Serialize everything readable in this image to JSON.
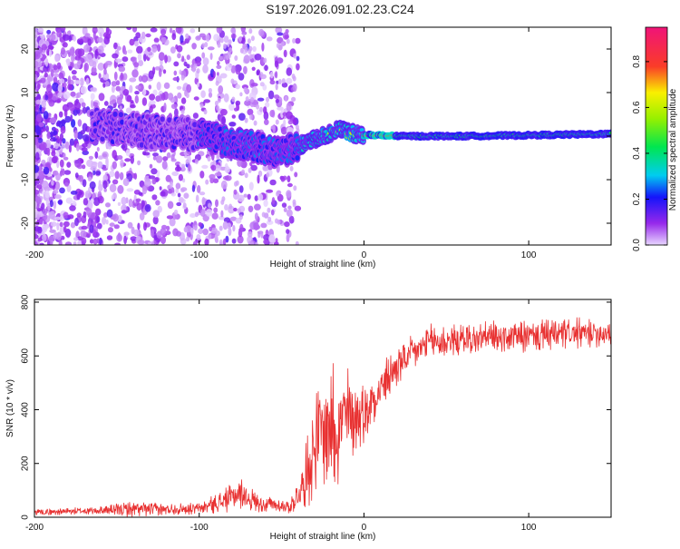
{
  "title": "S197.2026.091.02.23.C24",
  "chart_data": [
    {
      "type": "heatmap",
      "xlabel": "Height of straight line (km)",
      "ylabel": "Frequency (Hz)",
      "xlim": [
        -200,
        150
      ],
      "ylim": [
        -25,
        25
      ],
      "xticks": [
        -200,
        -100,
        0,
        100
      ],
      "yticks": [
        -20,
        -10,
        0,
        10,
        20
      ],
      "colorbar": {
        "label": "Normalized spectral amplitude",
        "range": [
          0,
          0.95
        ],
        "ticks": [
          0.0,
          0.2,
          0.4,
          0.6,
          0.8
        ]
      },
      "ridge": [
        {
          "x": -160,
          "y": 2.5
        },
        {
          "x": -140,
          "y": 1.5
        },
        {
          "x": -120,
          "y": 0.5
        },
        {
          "x": -100,
          "y": 0.5
        },
        {
          "x": -85,
          "y": -1.0
        },
        {
          "x": -70,
          "y": -2.0
        },
        {
          "x": -55,
          "y": -3.5
        },
        {
          "x": -45,
          "y": -3.0
        },
        {
          "x": -35,
          "y": -1.5
        },
        {
          "x": -25,
          "y": 0.0
        },
        {
          "x": -15,
          "y": 1.5
        },
        {
          "x": -5,
          "y": 0.5
        },
        {
          "x": 0,
          "y": 0.3
        },
        {
          "x": 20,
          "y": 0.0
        },
        {
          "x": 60,
          "y": 0.0
        },
        {
          "x": 100,
          "y": 0.2
        },
        {
          "x": 150,
          "y": 0.5
        }
      ]
    },
    {
      "type": "line",
      "xlabel": "Height of straight line (km)",
      "ylabel": "SNR (10 * v/v)",
      "xlim": [
        -200,
        150
      ],
      "ylim": [
        0,
        810
      ],
      "xticks": [
        -200,
        -100,
        0,
        100
      ],
      "yticks": [
        0,
        200,
        400,
        600,
        800
      ],
      "series": [
        {
          "name": "SNR",
          "color": "#e83030",
          "x": [
            -200,
            -180,
            -160,
            -140,
            -120,
            -100,
            -85,
            -75,
            -65,
            -55,
            -45,
            -38,
            -32,
            -28,
            -24,
            -20,
            -16,
            -12,
            -8,
            -4,
            0,
            10,
            20,
            30,
            40,
            60,
            80,
            100,
            120,
            150
          ],
          "mean": [
            20,
            22,
            25,
            30,
            30,
            32,
            60,
            90,
            55,
            45,
            40,
            100,
            220,
            300,
            330,
            360,
            330,
            370,
            380,
            380,
            390,
            480,
            560,
            610,
            650,
            660,
            670,
            670,
            680,
            690
          ],
          "spread": [
            15,
            15,
            18,
            35,
            25,
            25,
            50,
            70,
            40,
            35,
            30,
            80,
            200,
            220,
            240,
            330,
            250,
            240,
            200,
            150,
            130,
            110,
            90,
            80,
            80,
            70,
            70,
            70,
            70,
            60
          ]
        }
      ]
    }
  ]
}
